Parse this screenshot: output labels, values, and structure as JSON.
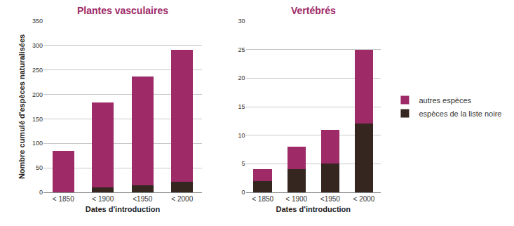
{
  "chart_data": [
    {
      "type": "bar",
      "title": "Plantes vasculaires",
      "x_label": "Dates d'introduction",
      "y_label": "Nombre cumulé d'espèces naturalisées",
      "categories": [
        "< 1850",
        "< 1900",
        "<1950",
        "< 2000"
      ],
      "series": [
        {
          "name": "espèces de la liste noire",
          "color": "#35261f",
          "values": [
            0,
            10,
            14,
            22
          ]
        },
        {
          "name": "autres espèces",
          "color": "#9e2a68",
          "values": [
            85,
            173,
            222,
            269
          ]
        }
      ],
      "stacked": true,
      "grid": true,
      "ylim": [
        0,
        350
      ],
      "yticks": [
        0,
        50,
        100,
        150,
        200,
        250,
        300,
        350
      ]
    },
    {
      "type": "bar",
      "title": "Vertébrés",
      "x_label": "Dates d'introduction",
      "categories": [
        "< 1850",
        "< 1900",
        "<1950",
        "< 2000"
      ],
      "series": [
        {
          "name": "espèces de la liste noire",
          "color": "#35261f",
          "values": [
            2,
            4,
            5,
            12
          ]
        },
        {
          "name": "autres espèces",
          "color": "#9e2a68",
          "values": [
            2,
            4,
            6,
            13
          ]
        }
      ],
      "stacked": true,
      "grid": true,
      "legend": "right",
      "ylim": [
        0,
        30
      ],
      "yticks": [
        0,
        5,
        10,
        15,
        20,
        25,
        30
      ]
    }
  ]
}
